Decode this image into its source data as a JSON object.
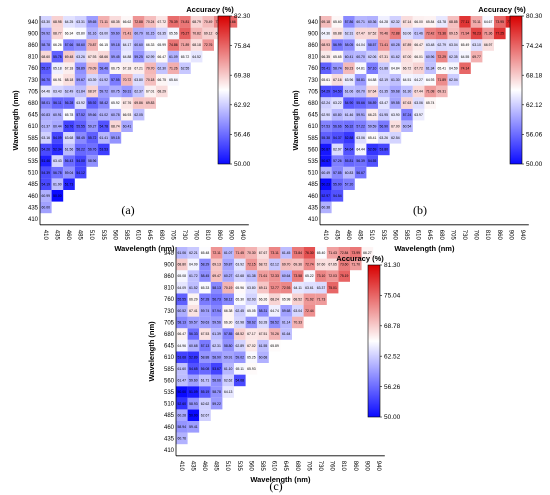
{
  "figure": {
    "panels": [
      "(a)",
      "(b)",
      "(c)"
    ]
  },
  "colors": {
    "low": "#1010ff",
    "mid": "#ffffff",
    "high": "#dd0000"
  },
  "chart_data": [
    {
      "type": "heatmap",
      "panel": "(a)",
      "title": "",
      "xlabel": "Wavelength (nm)",
      "ylabel": "Wavelength (nm)",
      "colorbar_label": "Accuracy (%)",
      "colorbar_ticks": [
        "82.30",
        "75.84",
        "69.38",
        "62.92",
        "56.46",
        "50.00"
      ],
      "vmin": 50.0,
      "vmax": 82.3,
      "wavelengths": [
        410,
        435,
        460,
        485,
        510,
        535,
        560,
        585,
        610,
        645,
        680,
        705,
        730,
        760,
        810,
        860,
        900,
        940
      ],
      "grid": false,
      "cells": "lower-triangle accuracy values, one per wavelength pair (x < y)"
    },
    {
      "type": "heatmap",
      "panel": "(b)",
      "title": "",
      "xlabel": "Wavelength (nm)",
      "ylabel": "Wavelength (nm)",
      "colorbar_label": "Accuracy (%)",
      "colorbar_ticks": [
        "80.30",
        "74.24",
        "68.18",
        "62.12",
        "56.06",
        "50.00"
      ],
      "vmin": 50.0,
      "vmax": 80.3,
      "wavelengths": [
        410,
        435,
        460,
        485,
        510,
        535,
        560,
        585,
        610,
        645,
        680,
        705,
        730,
        760,
        810,
        860,
        900,
        940
      ],
      "grid": false
    },
    {
      "type": "heatmap",
      "panel": "(c)",
      "title": "",
      "xlabel": "Wavelength (nm)",
      "ylabel": "Wavelength (nm)",
      "colorbar_label": "Accuracy (%)",
      "colorbar_ticks": [
        "81.30",
        "75.04",
        "68.78",
        "62.52",
        "56.26",
        "50.00"
      ],
      "vmin": 50.0,
      "vmax": 81.3,
      "wavelengths": [
        410,
        435,
        460,
        485,
        510,
        535,
        560,
        585,
        610,
        645,
        680,
        705,
        730,
        760,
        810,
        860,
        900,
        940
      ],
      "grid": false
    }
  ]
}
